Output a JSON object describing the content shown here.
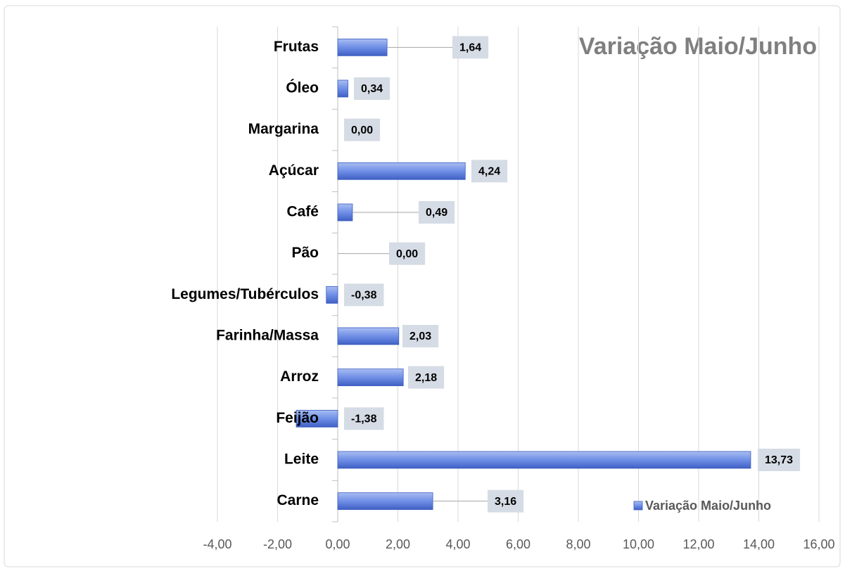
{
  "chart_data": {
    "type": "bar",
    "orientation": "horizontal",
    "title": "Variação Maio/Junho",
    "categories": [
      "Frutas",
      "Óleo",
      "Margarina",
      "Açúcar",
      "Café",
      "Pão",
      "Legumes/Tubérculos",
      "Farinha/Massa",
      "Arroz",
      "Feijão",
      "Leite",
      "Carne"
    ],
    "series": [
      {
        "name": "Variação Maio/Junho",
        "color": "#5b7fe0",
        "values": [
          1.64,
          0.34,
          0.0,
          4.24,
          0.49,
          0.0,
          -0.38,
          2.03,
          2.18,
          -1.38,
          13.73,
          3.16
        ],
        "value_labels": [
          "1,64",
          "0,34",
          "0,00",
          "4,24",
          "0,49",
          "0,00",
          "-0,38",
          "2,03",
          "2,18",
          "-1,38",
          "13,73",
          "3,16"
        ]
      }
    ],
    "xlim": [
      -4,
      16
    ],
    "xticks": [
      {
        "value": -4,
        "label": "-4,00"
      },
      {
        "value": -2,
        "label": "-2,00"
      },
      {
        "value": 0,
        "label": "0,00"
      },
      {
        "value": 2,
        "label": "2,00"
      },
      {
        "value": 4,
        "label": "4,00"
      },
      {
        "value": 6,
        "label": "6,00"
      },
      {
        "value": 8,
        "label": "8,00"
      },
      {
        "value": 10,
        "label": "10,00"
      },
      {
        "value": 12,
        "label": "12,00"
      },
      {
        "value": 14,
        "label": "14,00"
      },
      {
        "value": 16,
        "label": "16,00"
      }
    ],
    "grid": true,
    "legend": "bottom-right"
  }
}
